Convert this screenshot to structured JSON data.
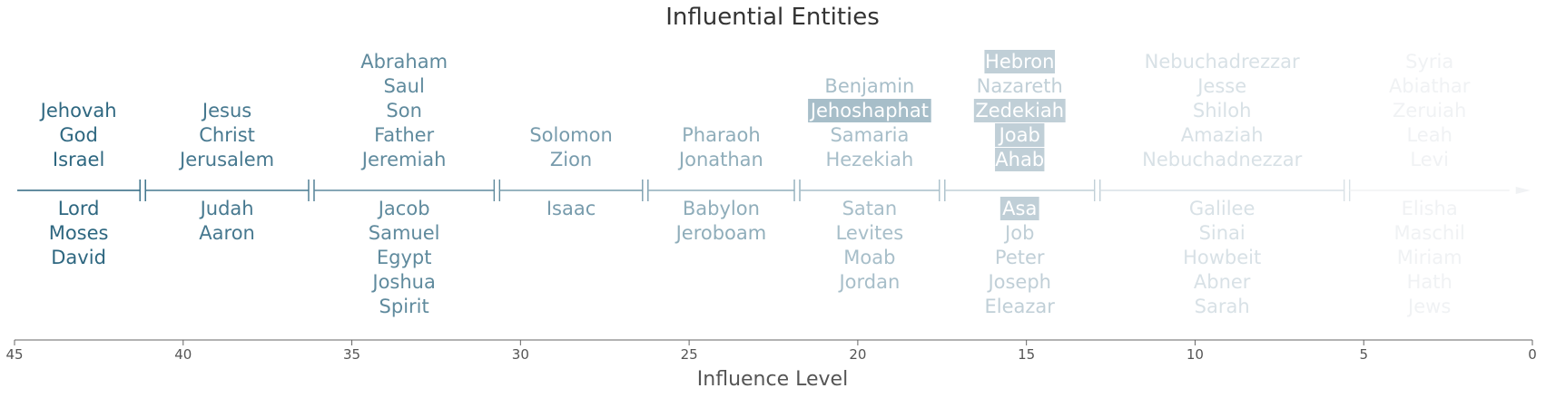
{
  "chart_data": {
    "type": "timeline",
    "title": "Influential Entities",
    "xlabel": "Influence Level",
    "xlim": [
      45,
      0
    ],
    "xticks": [
      45,
      40,
      35,
      30,
      25,
      20,
      15,
      10,
      5,
      0
    ],
    "colors": {
      "darkest": "#2e6780",
      "light": "#f0f2f4"
    },
    "groups": [
      {
        "start": 45.0,
        "end": 41.2,
        "above": [
          "Jehovah",
          "God",
          "Israel"
        ],
        "below": [
          "Lord",
          "Moses",
          "David"
        ],
        "highlighted": []
      },
      {
        "start": 41.2,
        "end": 36.2,
        "above": [
          "Jesus",
          "Christ",
          "Jerusalem"
        ],
        "below": [
          "Judah",
          "Aaron"
        ],
        "highlighted": []
      },
      {
        "start": 36.2,
        "end": 30.7,
        "above": [
          "Abraham",
          "Saul",
          "Son",
          "Father",
          "Jeremiah"
        ],
        "below": [
          "Jacob",
          "Samuel",
          "Egypt",
          "Joshua",
          "Spirit"
        ],
        "highlighted": []
      },
      {
        "start": 30.7,
        "end": 26.3,
        "above": [
          "Solomon",
          "Zion"
        ],
        "below": [
          "Isaac"
        ],
        "highlighted": []
      },
      {
        "start": 26.3,
        "end": 21.8,
        "above": [
          "Pharaoh",
          "Jonathan"
        ],
        "below": [
          "Babylon",
          "Jeroboam"
        ],
        "highlighted": []
      },
      {
        "start": 21.8,
        "end": 17.5,
        "above": [
          "Benjamin",
          "Jehoshaphat",
          "Samaria",
          "Hezekiah"
        ],
        "below": [
          "Satan",
          "Levites",
          "Moab",
          "Jordan"
        ],
        "highlighted": [
          "Jehoshaphat"
        ]
      },
      {
        "start": 17.5,
        "end": 12.9,
        "above": [
          "Hebron",
          "Nazareth",
          "Zedekiah",
          "Joab",
          "Ahab"
        ],
        "below": [
          "Asa",
          "Job",
          "Peter",
          "Joseph",
          "Eleazar"
        ],
        "highlighted": [
          "Hebron",
          "Zedekiah",
          "Joab",
          "Ahab",
          "Asa"
        ]
      },
      {
        "start": 12.9,
        "end": 5.5,
        "above": [
          "Nebuchadrezzar",
          "Jesse",
          "Shiloh",
          "Amaziah",
          "Nebuchadnezzar"
        ],
        "below": [
          "Galilee",
          "Sinai",
          "Howbeit",
          "Abner",
          "Sarah"
        ],
        "highlighted": []
      },
      {
        "start": 5.5,
        "end": 0.6,
        "above": [
          "Syria",
          "Abiathar",
          "Zeruiah",
          "Leah",
          "Levi"
        ],
        "below": [
          "Elisha",
          "Maschil",
          "Miriam",
          "Hath",
          "Jews"
        ],
        "highlighted": []
      }
    ]
  }
}
